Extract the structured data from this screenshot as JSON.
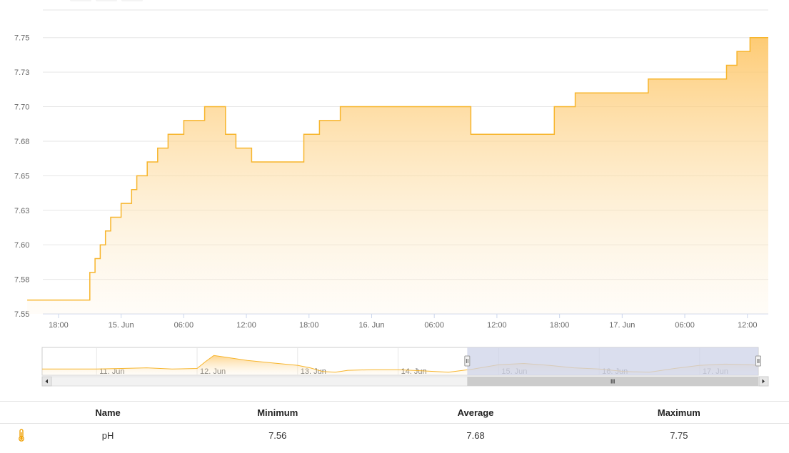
{
  "chart_data": {
    "type": "area",
    "series": [
      {
        "name": "pH",
        "color": "#f7b52c",
        "points": [
          [
            "2024-06-14 15:00",
            7.56
          ],
          [
            "2024-06-14 21:00",
            7.56
          ],
          [
            "2024-06-14 21:00",
            7.58
          ],
          [
            "2024-06-14 21:30",
            7.58
          ],
          [
            "2024-06-14 21:30",
            7.59
          ],
          [
            "2024-06-14 22:00",
            7.59
          ],
          [
            "2024-06-14 22:00",
            7.6
          ],
          [
            "2024-06-14 22:30",
            7.6
          ],
          [
            "2024-06-14 22:30",
            7.61
          ],
          [
            "2024-06-14 23:00",
            7.61
          ],
          [
            "2024-06-14 23:00",
            7.62
          ],
          [
            "2024-06-15 00:00",
            7.62
          ],
          [
            "2024-06-15 00:00",
            7.63
          ],
          [
            "2024-06-15 01:00",
            7.63
          ],
          [
            "2024-06-15 01:00",
            7.64
          ],
          [
            "2024-06-15 01:30",
            7.64
          ],
          [
            "2024-06-15 01:30",
            7.65
          ],
          [
            "2024-06-15 02:30",
            7.65
          ],
          [
            "2024-06-15 02:30",
            7.66
          ],
          [
            "2024-06-15 03:30",
            7.66
          ],
          [
            "2024-06-15 03:30",
            7.67
          ],
          [
            "2024-06-15 04:30",
            7.67
          ],
          [
            "2024-06-15 04:30",
            7.68
          ],
          [
            "2024-06-15 06:00",
            7.68
          ],
          [
            "2024-06-15 06:00",
            7.69
          ],
          [
            "2024-06-15 08:00",
            7.69
          ],
          [
            "2024-06-15 08:00",
            7.7
          ],
          [
            "2024-06-15 10:00",
            7.7
          ],
          [
            "2024-06-15 10:00",
            7.68
          ],
          [
            "2024-06-15 11:00",
            7.68
          ],
          [
            "2024-06-15 11:00",
            7.67
          ],
          [
            "2024-06-15 12:30",
            7.67
          ],
          [
            "2024-06-15 12:30",
            7.66
          ],
          [
            "2024-06-15 17:30",
            7.66
          ],
          [
            "2024-06-15 17:30",
            7.68
          ],
          [
            "2024-06-15 19:00",
            7.68
          ],
          [
            "2024-06-15 19:00",
            7.69
          ],
          [
            "2024-06-15 21:00",
            7.69
          ],
          [
            "2024-06-15 21:00",
            7.7
          ],
          [
            "2024-06-16 09:30",
            7.7
          ],
          [
            "2024-06-16 09:30",
            7.68
          ],
          [
            "2024-06-16 17:30",
            7.68
          ],
          [
            "2024-06-16 17:30",
            7.7
          ],
          [
            "2024-06-16 19:30",
            7.7
          ],
          [
            "2024-06-16 19:30",
            7.71
          ],
          [
            "2024-06-17 02:30",
            7.71
          ],
          [
            "2024-06-17 02:30",
            7.72
          ],
          [
            "2024-06-17 10:00",
            7.72
          ],
          [
            "2024-06-17 10:00",
            7.73
          ],
          [
            "2024-06-17 11:00",
            7.73
          ],
          [
            "2024-06-17 11:00",
            7.74
          ],
          [
            "2024-06-17 12:15",
            7.74
          ],
          [
            "2024-06-17 12:15",
            7.75
          ],
          [
            "2024-06-17 14:00",
            7.75
          ]
        ]
      }
    ],
    "xlim": [
      "2024-06-14 16:30",
      "2024-06-17 14:00"
    ],
    "ylim": [
      7.55,
      7.77
    ],
    "yticks": [
      {
        "value": 7.55,
        "label": "7.55"
      },
      {
        "value": 7.575,
        "label": "7.58"
      },
      {
        "value": 7.6,
        "label": "7.60"
      },
      {
        "value": 7.625,
        "label": "7.63"
      },
      {
        "value": 7.65,
        "label": "7.65"
      },
      {
        "value": 7.675,
        "label": "7.68"
      },
      {
        "value": 7.7,
        "label": "7.70"
      },
      {
        "value": 7.725,
        "label": "7.73"
      },
      {
        "value": 7.75,
        "label": "7.75"
      }
    ],
    "xticks": [
      {
        "value": "2024-06-14 18:00",
        "label": "18:00"
      },
      {
        "value": "2024-06-15 00:00",
        "label": "15. Jun"
      },
      {
        "value": "2024-06-15 06:00",
        "label": "06:00"
      },
      {
        "value": "2024-06-15 12:00",
        "label": "12:00"
      },
      {
        "value": "2024-06-15 18:00",
        "label": "18:00"
      },
      {
        "value": "2024-06-16 00:00",
        "label": "16. Jun"
      },
      {
        "value": "2024-06-16 06:00",
        "label": "06:00"
      },
      {
        "value": "2024-06-16 12:00",
        "label": "12:00"
      },
      {
        "value": "2024-06-16 18:00",
        "label": "18:00"
      },
      {
        "value": "2024-06-17 00:00",
        "label": "17. Jun"
      },
      {
        "value": "2024-06-17 06:00",
        "label": "06:00"
      },
      {
        "value": "2024-06-17 12:00",
        "label": "12:00"
      }
    ],
    "grid": true,
    "navigator": {
      "xlim": [
        "2024-06-10 11:00",
        "2024-06-17 14:00"
      ],
      "ylim": [
        7.5,
        7.95
      ],
      "selected_range": [
        "2024-06-14 16:30",
        "2024-06-17 14:00"
      ],
      "xticks": [
        {
          "value": "2024-06-11 00:00",
          "label": "11. Jun"
        },
        {
          "value": "2024-06-12 00:00",
          "label": "12. Jun"
        },
        {
          "value": "2024-06-13 00:00",
          "label": "13. Jun"
        },
        {
          "value": "2024-06-14 00:00",
          "label": "14. Jun"
        },
        {
          "value": "2024-06-15 00:00",
          "label": "15. Jun"
        },
        {
          "value": "2024-06-16 00:00",
          "label": "16. Jun"
        },
        {
          "value": "2024-06-17 00:00",
          "label": "17. Jun"
        }
      ],
      "points": [
        [
          "2024-06-10 11:00",
          7.6
        ],
        [
          "2024-06-11 00:00",
          7.6
        ],
        [
          "2024-06-11 06:00",
          7.61
        ],
        [
          "2024-06-11 12:00",
          7.62
        ],
        [
          "2024-06-11 18:00",
          7.6
        ],
        [
          "2024-06-12 00:00",
          7.61
        ],
        [
          "2024-06-12 02:00",
          7.72
        ],
        [
          "2024-06-12 04:00",
          7.82
        ],
        [
          "2024-06-12 06:00",
          7.8
        ],
        [
          "2024-06-12 12:00",
          7.74
        ],
        [
          "2024-06-12 18:00",
          7.7
        ],
        [
          "2024-06-13 00:00",
          7.66
        ],
        [
          "2024-06-13 03:00",
          7.62
        ],
        [
          "2024-06-13 06:00",
          7.56
        ],
        [
          "2024-06-13 09:00",
          7.55
        ],
        [
          "2024-06-13 12:00",
          7.58
        ],
        [
          "2024-06-13 18:00",
          7.59
        ],
        [
          "2024-06-14 00:00",
          7.59
        ],
        [
          "2024-06-14 06:00",
          7.57
        ],
        [
          "2024-06-14 12:00",
          7.55
        ],
        [
          "2024-06-14 18:00",
          7.6
        ],
        [
          "2024-06-15 00:00",
          7.67
        ],
        [
          "2024-06-15 06:00",
          7.69
        ],
        [
          "2024-06-15 12:00",
          7.66
        ],
        [
          "2024-06-15 18:00",
          7.62
        ],
        [
          "2024-06-16 00:00",
          7.6
        ],
        [
          "2024-06-16 06:00",
          7.56
        ],
        [
          "2024-06-16 12:00",
          7.55
        ],
        [
          "2024-06-16 18:00",
          7.61
        ],
        [
          "2024-06-17 00:00",
          7.66
        ],
        [
          "2024-06-17 06:00",
          7.68
        ],
        [
          "2024-06-17 12:00",
          7.67
        ],
        [
          "2024-06-17 14:00",
          7.66
        ]
      ]
    }
  },
  "summary": {
    "headers": {
      "name": "Name",
      "minimum": "Minimum",
      "average": "Average",
      "maximum": "Maximum"
    },
    "rows": [
      {
        "icon": "thermometer-icon",
        "name": "pH",
        "minimum": "7.56",
        "average": "7.68",
        "maximum": "7.75"
      }
    ]
  },
  "colors": {
    "series": "#f7b52c",
    "navigator_mask": "#cdd3e8",
    "scrollbar_thumb": "#cccccc",
    "icon": "#f0a30a"
  }
}
